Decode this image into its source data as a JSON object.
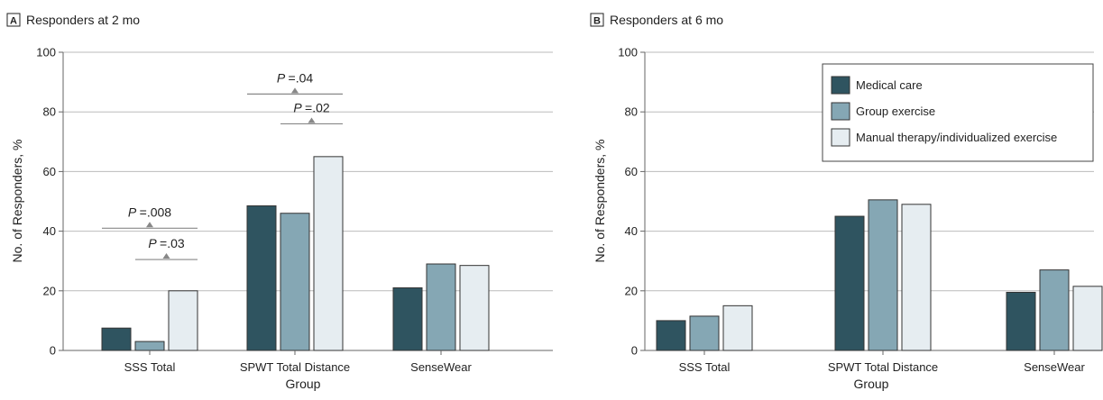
{
  "colors": {
    "medical_care": "#2f5460",
    "group_exercise": "#85a7b4",
    "manual_therapy": "#e6edf1"
  },
  "chart_data": [
    {
      "type": "bar",
      "panel_letter": "A",
      "title": "Responders at 2 mo",
      "xlabel": "Group",
      "ylabel": "No. of Responders, %",
      "ylim": [
        0,
        100
      ],
      "yticks": [
        "0",
        "20",
        "40",
        "60",
        "80",
        "100"
      ],
      "grid": true,
      "legend": null,
      "categories": [
        "SSS Total",
        "SPWT Total Distance",
        "SenseWear"
      ],
      "series": [
        {
          "name": "Medical care",
          "color_key": "medical_care",
          "values": [
            7.5,
            48.5,
            21
          ]
        },
        {
          "name": "Group exercise",
          "color_key": "group_exercise",
          "values": [
            3,
            46,
            29
          ]
        },
        {
          "name": "Manual therapy/individualized exercise",
          "color_key": "manual_therapy",
          "values": [
            20,
            65,
            28.5
          ]
        }
      ],
      "annotations": [
        {
          "p_label": "P",
          "p_value": "=.008",
          "category": 0,
          "from_series": 0,
          "to_series": 2,
          "y": 41
        },
        {
          "p_label": "P",
          "p_value": "=.03",
          "category": 0,
          "from_series": 1,
          "to_series": 2,
          "y": 30.5
        },
        {
          "p_label": "P",
          "p_value": "=.04",
          "category": 1,
          "from_series": 0,
          "to_series": 2,
          "y": 86
        },
        {
          "p_label": "P",
          "p_value": "=.02",
          "category": 1,
          "from_series": 1,
          "to_series": 2,
          "y": 76
        }
      ]
    },
    {
      "type": "bar",
      "panel_letter": "B",
      "title": "Responders at 6 mo",
      "xlabel": "Group",
      "ylabel": "No. of Responders, %",
      "ylim": [
        0,
        100
      ],
      "yticks": [
        "0",
        "20",
        "40",
        "60",
        "80",
        "100"
      ],
      "grid": true,
      "legend": {
        "placement": "top-right",
        "entries": [
          {
            "label": "Medical care",
            "color_key": "medical_care"
          },
          {
            "label": "Group exercise",
            "color_key": "group_exercise"
          },
          {
            "label": "Manual therapy/individualized exercise",
            "color_key": "manual_therapy"
          }
        ]
      },
      "categories": [
        "SSS Total",
        "SPWT Total Distance",
        "SenseWear"
      ],
      "series": [
        {
          "name": "Medical care",
          "color_key": "medical_care",
          "values": [
            10,
            45,
            19.5
          ]
        },
        {
          "name": "Group exercise",
          "color_key": "group_exercise",
          "values": [
            11.5,
            50.5,
            27
          ]
        },
        {
          "name": "Manual therapy/individualized exercise",
          "color_key": "manual_therapy",
          "values": [
            15,
            49,
            21.5
          ]
        }
      ],
      "annotations": []
    }
  ]
}
